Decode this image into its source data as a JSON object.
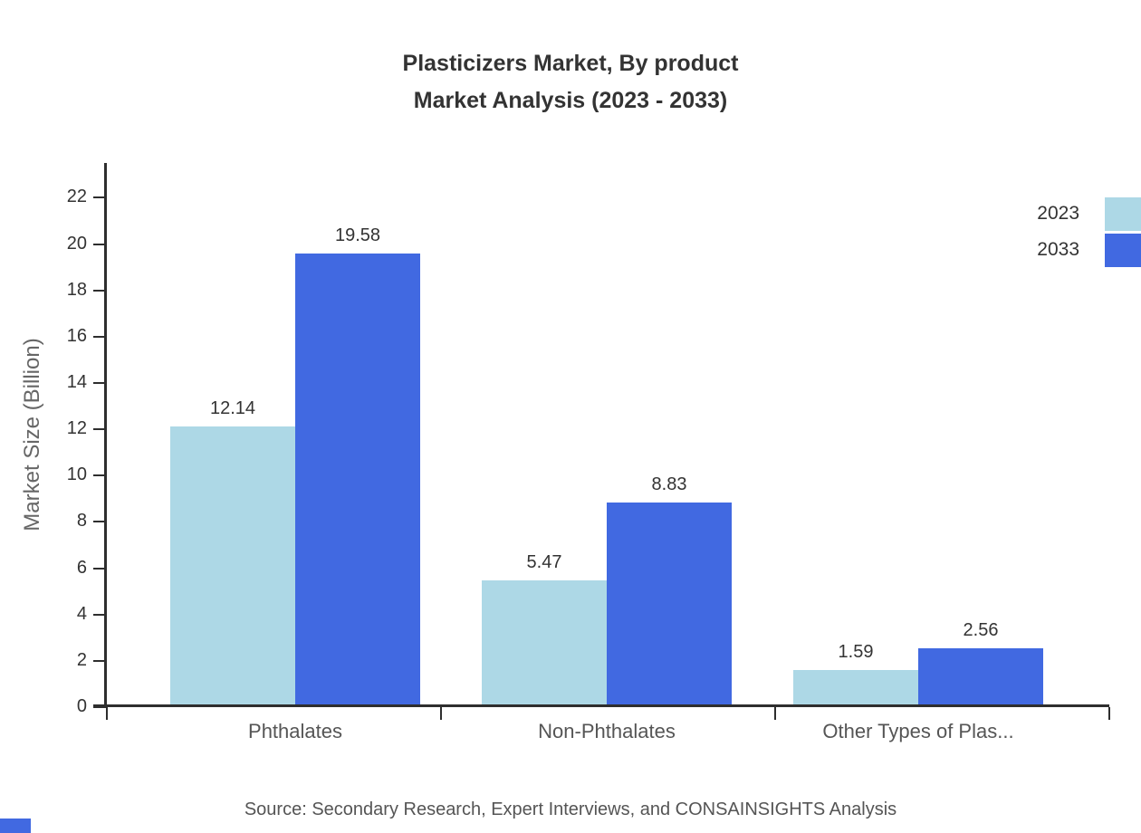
{
  "title": {
    "line1": "Plasticizers Market, By product",
    "line2": "Market Analysis (2023 - 2033)"
  },
  "source": "Source: Secondary Research, Expert Interviews, and CONSAINSIGHTS Analysis",
  "chart_data": {
    "type": "bar",
    "title": "Plasticizers Market, By product Market Analysis (2023 - 2033)",
    "categories": [
      "Phthalates",
      "Non-Phthalates",
      "Other Types of Plas..."
    ],
    "series": [
      {
        "name": "2023",
        "color": "#ADD8E6",
        "values": [
          12.14,
          5.47,
          1.59
        ]
      },
      {
        "name": "2033",
        "color": "#4169E1",
        "values": [
          19.58,
          8.83,
          2.56
        ]
      }
    ],
    "xlabel": "",
    "ylabel": "Market Size (Billion)",
    "ylim": [
      0,
      22
    ],
    "ytick_step": 2,
    "grid": false,
    "legend_position": "top-right"
  }
}
